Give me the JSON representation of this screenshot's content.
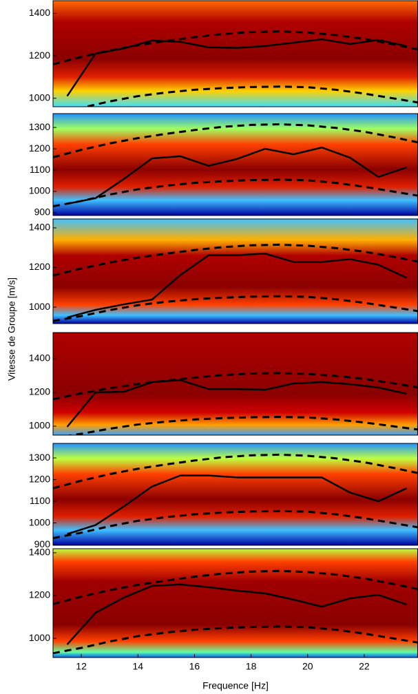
{
  "chart_data": [
    {
      "type": "line",
      "xlim": [
        11,
        23.9
      ],
      "ylim": [
        960,
        1460
      ],
      "yticks": [
        1000,
        1200,
        1400
      ],
      "series": [
        {
          "color": "#000000",
          "linestyle": "solid",
          "x": [
            11.5,
            12.5,
            13.5,
            14.5,
            15.5,
            16.5,
            17.5,
            18.5,
            19.5,
            20.5,
            21.5,
            22.5,
            23.5
          ],
          "values": [
            1010,
            1210,
            1235,
            1272,
            1266,
            1240,
            1237,
            1246,
            1262,
            1278,
            1256,
            1275,
            1246
          ]
        },
        {
          "color": "#000000",
          "linestyle": "dashed",
          "x": [
            11,
            12,
            13,
            14,
            15,
            16,
            17,
            18,
            19,
            20,
            21,
            22,
            23,
            23.9
          ],
          "values": [
            1160,
            1195,
            1225,
            1250,
            1270,
            1288,
            1303,
            1312,
            1315,
            1310,
            1298,
            1280,
            1255,
            1230
          ]
        },
        {
          "color": "#000000",
          "linestyle": "dashed",
          "x": [
            11,
            12,
            13,
            14,
            15,
            16,
            17,
            18,
            19,
            20,
            21,
            22,
            23,
            23.9
          ],
          "values": [
            930,
            955,
            985,
            1010,
            1027,
            1040,
            1048,
            1053,
            1055,
            1052,
            1040,
            1022,
            1000,
            980
          ]
        }
      ]
    },
    {
      "type": "line",
      "xlim": [
        11,
        23.9
      ],
      "ylim": [
        887,
        1365
      ],
      "yticks": [
        900,
        1000,
        1100,
        1200,
        1300
      ],
      "series": [
        {
          "color": "#000000",
          "linestyle": "solid",
          "x": [
            11.5,
            12.5,
            13.5,
            14.5,
            15.5,
            16.5,
            17.5,
            18.5,
            19.5,
            20.5,
            21.5,
            22.5,
            23.5
          ],
          "values": [
            942,
            968,
            1058,
            1155,
            1165,
            1120,
            1152,
            1200,
            1174,
            1206,
            1158,
            1068,
            1113
          ]
        },
        {
          "color": "#000000",
          "linestyle": "dashed",
          "x": [
            11,
            12,
            13,
            14,
            15,
            16,
            17,
            18,
            19,
            20,
            21,
            22,
            23,
            23.9
          ],
          "values": [
            1160,
            1195,
            1225,
            1250,
            1270,
            1288,
            1303,
            1312,
            1315,
            1310,
            1298,
            1280,
            1255,
            1230
          ]
        },
        {
          "color": "#000000",
          "linestyle": "dashed",
          "x": [
            11,
            12,
            13,
            14,
            15,
            16,
            17,
            18,
            19,
            20,
            21,
            22,
            23,
            23.9
          ],
          "values": [
            930,
            955,
            985,
            1010,
            1027,
            1040,
            1048,
            1053,
            1055,
            1052,
            1040,
            1022,
            1000,
            980
          ]
        }
      ]
    },
    {
      "type": "line",
      "xlim": [
        11,
        23.9
      ],
      "ylim": [
        917,
        1445
      ],
      "yticks": [
        1000,
        1200,
        1400
      ],
      "series": [
        {
          "color": "#000000",
          "linestyle": "solid",
          "x": [
            11.5,
            12.5,
            13.5,
            14.5,
            15.5,
            16.5,
            17.5,
            18.5,
            19.5,
            20.5,
            21.5,
            22.5,
            23.5
          ],
          "values": [
            948,
            986,
            1014,
            1038,
            1162,
            1262,
            1262,
            1270,
            1228,
            1228,
            1242,
            1214,
            1148
          ]
        },
        {
          "color": "#000000",
          "linestyle": "dashed",
          "x": [
            11,
            12,
            13,
            14,
            15,
            16,
            17,
            18,
            19,
            20,
            21,
            22,
            23,
            23.9
          ],
          "values": [
            1160,
            1195,
            1225,
            1250,
            1270,
            1288,
            1303,
            1312,
            1315,
            1310,
            1298,
            1280,
            1255,
            1230
          ]
        },
        {
          "color": "#000000",
          "linestyle": "dashed",
          "x": [
            11,
            12,
            13,
            14,
            15,
            16,
            17,
            18,
            19,
            20,
            21,
            22,
            23,
            23.9
          ],
          "values": [
            930,
            955,
            985,
            1010,
            1027,
            1040,
            1048,
            1053,
            1055,
            1052,
            1040,
            1022,
            1000,
            980
          ]
        }
      ]
    },
    {
      "type": "line",
      "xlim": [
        11,
        23.9
      ],
      "ylim": [
        947,
        1555
      ],
      "yticks": [
        1000,
        1200,
        1400
      ],
      "ylabel": "Vitesse de Groupe [m/s]",
      "series": [
        {
          "color": "#000000",
          "linestyle": "solid",
          "x": [
            11.5,
            12.5,
            13.5,
            14.5,
            15.5,
            16.5,
            17.5,
            18.5,
            19.5,
            20.5,
            21.5,
            22.5,
            23.5
          ],
          "values": [
            996,
            1200,
            1204,
            1261,
            1273,
            1220,
            1220,
            1216,
            1253,
            1261,
            1249,
            1229,
            1192
          ]
        },
        {
          "color": "#000000",
          "linestyle": "dashed",
          "x": [
            11,
            12,
            13,
            14,
            15,
            16,
            17,
            18,
            19,
            20,
            21,
            22,
            23,
            23.9
          ],
          "values": [
            1160,
            1195,
            1225,
            1250,
            1270,
            1288,
            1303,
            1312,
            1315,
            1310,
            1298,
            1280,
            1255,
            1230
          ]
        },
        {
          "color": "#000000",
          "linestyle": "dashed",
          "x": [
            11,
            12,
            13,
            14,
            15,
            16,
            17,
            18,
            19,
            20,
            21,
            22,
            23,
            23.9
          ],
          "values": [
            930,
            955,
            985,
            1010,
            1027,
            1040,
            1048,
            1053,
            1055,
            1052,
            1040,
            1022,
            1000,
            980
          ]
        }
      ]
    },
    {
      "type": "line",
      "xlim": [
        11,
        23.9
      ],
      "ylim": [
        897,
        1367
      ],
      "yticks": [
        900,
        1000,
        1100,
        1200,
        1300
      ],
      "series": [
        {
          "color": "#000000",
          "linestyle": "solid",
          "x": [
            11.5,
            12.5,
            13.5,
            14.5,
            15.5,
            16.5,
            17.5,
            18.5,
            19.5,
            20.5,
            21.5,
            22.5,
            23.5
          ],
          "values": [
            949,
            990,
            1076,
            1168,
            1219,
            1219,
            1210,
            1210,
            1210,
            1210,
            1140,
            1100,
            1160
          ]
        },
        {
          "color": "#000000",
          "linestyle": "dashed",
          "x": [
            11,
            12,
            13,
            14,
            15,
            16,
            17,
            18,
            19,
            20,
            21,
            22,
            23,
            23.9
          ],
          "values": [
            1160,
            1195,
            1225,
            1250,
            1270,
            1288,
            1303,
            1312,
            1315,
            1310,
            1298,
            1280,
            1255,
            1230
          ]
        },
        {
          "color": "#000000",
          "linestyle": "dashed",
          "x": [
            11,
            12,
            13,
            14,
            15,
            16,
            17,
            18,
            19,
            20,
            21,
            22,
            23,
            23.9
          ],
          "values": [
            930,
            955,
            985,
            1010,
            1027,
            1040,
            1048,
            1053,
            1055,
            1052,
            1040,
            1022,
            1000,
            980
          ]
        }
      ]
    },
    {
      "type": "line",
      "xlim": [
        11,
        23.9
      ],
      "ylim": [
        910,
        1419
      ],
      "yticks": [
        1000,
        1200,
        1400
      ],
      "xticks": [
        12,
        14,
        16,
        18,
        20,
        22
      ],
      "xlabel": "Frequence [Hz]",
      "series": [
        {
          "color": "#000000",
          "linestyle": "solid",
          "x": [
            11.5,
            12.5,
            13.5,
            14.5,
            15.5,
            16.5,
            17.5,
            18.5,
            19.5,
            20.5,
            21.5,
            22.5,
            23.5
          ],
          "values": [
            971,
            1119,
            1190,
            1245,
            1252,
            1239,
            1223,
            1210,
            1181,
            1148,
            1187,
            1203,
            1158
          ]
        },
        {
          "color": "#000000",
          "linestyle": "dashed",
          "x": [
            11,
            12,
            13,
            14,
            15,
            16,
            17,
            18,
            19,
            20,
            21,
            22,
            23,
            23.9
          ],
          "values": [
            1160,
            1195,
            1225,
            1250,
            1270,
            1288,
            1303,
            1312,
            1315,
            1310,
            1298,
            1280,
            1255,
            1230
          ]
        },
        {
          "color": "#000000",
          "linestyle": "dashed",
          "x": [
            11,
            12,
            13,
            14,
            15,
            16,
            17,
            18,
            19,
            20,
            21,
            22,
            23,
            23.9
          ],
          "values": [
            930,
            955,
            985,
            1010,
            1027,
            1040,
            1048,
            1053,
            1055,
            1052,
            1040,
            1022,
            1000,
            980
          ]
        }
      ]
    }
  ]
}
